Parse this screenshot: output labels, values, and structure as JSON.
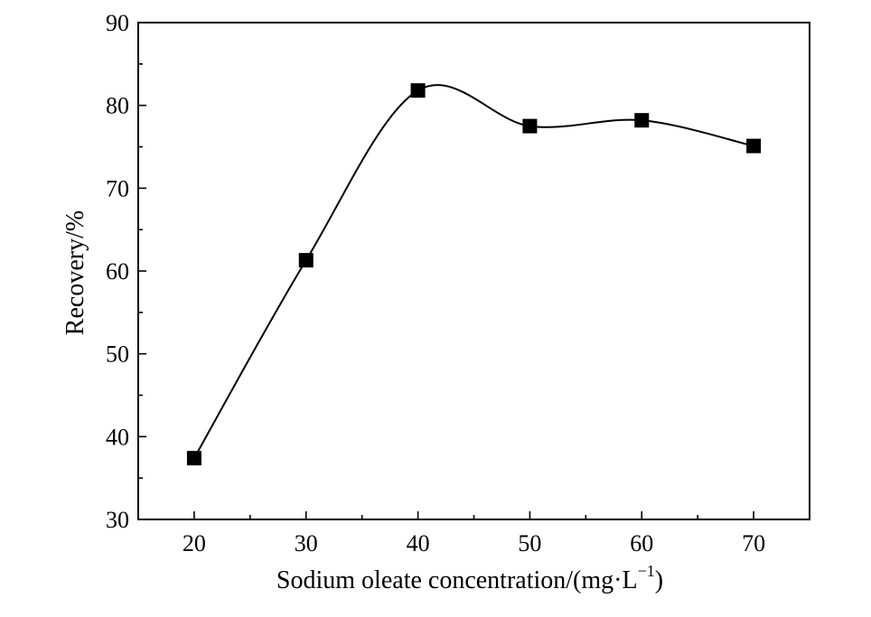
{
  "chart_data": {
    "type": "line",
    "x": [
      20,
      30,
      40,
      50,
      60,
      70
    ],
    "series": [
      {
        "values": [
          37.4,
          61.3,
          81.8,
          77.5,
          78.2,
          75.1
        ]
      }
    ],
    "xlabel_main": "Sodium oleate concentration/(mg·L",
    "xlabel_sup": "−1",
    "xlabel_tail": ")",
    "ylabel": "Recovery/%",
    "xlim": [
      15,
      75
    ],
    "ylim": [
      30,
      90
    ],
    "xticks": [
      "20",
      "30",
      "40",
      "50",
      "60",
      "70"
    ],
    "yticks": [
      "30",
      "40",
      "50",
      "60",
      "70",
      "80",
      "90"
    ],
    "marker": "filled-square",
    "line": "smooth-spline",
    "grid": false,
    "legend": "none",
    "color": "#000000"
  }
}
